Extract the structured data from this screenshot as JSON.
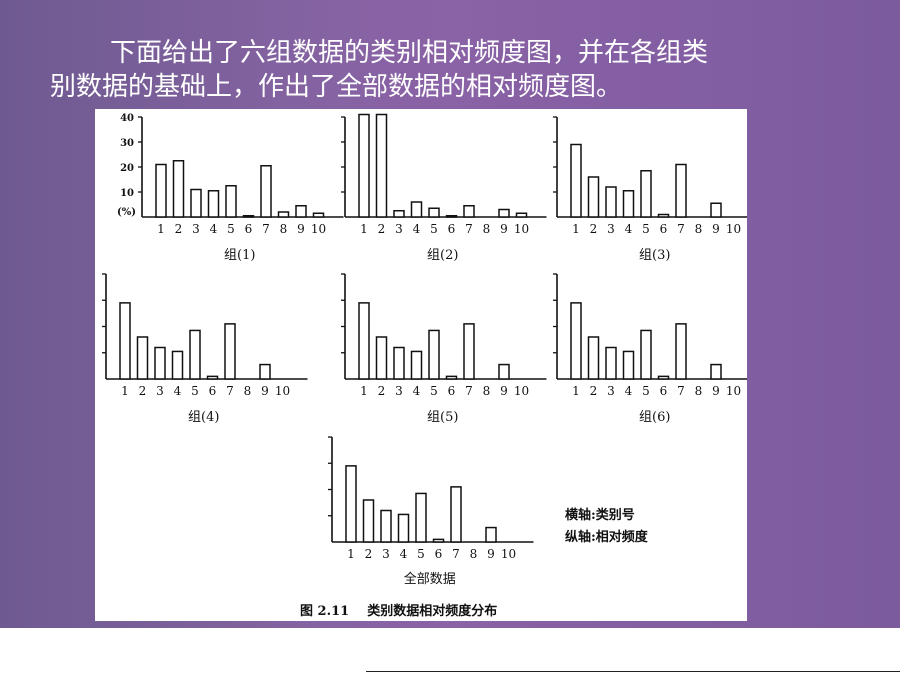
{
  "intro": {
    "line1": "下面给出了六组数据的类别相对频度图，并在各组类",
    "line2": "别数据的基础上，作出了全部数据的相对频度图。"
  },
  "figure": {
    "caption": "图 2.11    类别数据相对频度分布",
    "legend_x": "横轴:类别号",
    "legend_y": "纵轴:相对频度"
  },
  "chart_data": [
    {
      "type": "bar",
      "title": "组(1)",
      "ylabel": "(%)",
      "yticks": [
        "40",
        "30",
        "20",
        "10"
      ],
      "ylim": [
        0,
        40
      ],
      "categories": [
        "1",
        "2",
        "3",
        "4",
        "5",
        "6",
        "7",
        "8",
        "9",
        "10"
      ],
      "values": [
        21,
        22.5,
        11,
        10.5,
        12.5,
        0.5,
        20.5,
        2,
        4.5,
        1.5
      ]
    },
    {
      "type": "bar",
      "title": "组(2)",
      "ylim": [
        0,
        40
      ],
      "categories": [
        "1",
        "2",
        "3",
        "4",
        "5",
        "6",
        "7",
        "8",
        "9",
        "10"
      ],
      "values": [
        41,
        41,
        2.5,
        6,
        3.5,
        0.5,
        4.5,
        0,
        3,
        1.5
      ]
    },
    {
      "type": "bar",
      "title": "组(3)",
      "ylim": [
        0,
        40
      ],
      "categories": [
        "1",
        "2",
        "3",
        "4",
        "5",
        "6",
        "7",
        "8",
        "9",
        "10"
      ],
      "values": [
        29,
        16,
        12,
        10.5,
        18.5,
        1,
        21,
        0,
        5.5,
        0
      ]
    },
    {
      "type": "bar",
      "title": "组(4)",
      "ylim": [
        0,
        40
      ],
      "categories": [
        "1",
        "2",
        "3",
        "4",
        "5",
        "6",
        "7",
        "8",
        "9",
        "10"
      ],
      "values": [
        29,
        16,
        12,
        10.5,
        18.5,
        1,
        21,
        0,
        5.5,
        0
      ]
    },
    {
      "type": "bar",
      "title": "组(5)",
      "ylim": [
        0,
        40
      ],
      "categories": [
        "1",
        "2",
        "3",
        "4",
        "5",
        "6",
        "7",
        "8",
        "9",
        "10"
      ],
      "values": [
        29,
        16,
        12,
        10.5,
        18.5,
        1,
        21,
        0,
        5.5,
        0
      ]
    },
    {
      "type": "bar",
      "title": "组(6)",
      "ylim": [
        0,
        40
      ],
      "categories": [
        "1",
        "2",
        "3",
        "4",
        "5",
        "6",
        "7",
        "8",
        "9",
        "10"
      ],
      "values": [
        29,
        16,
        12,
        10.5,
        18.5,
        1,
        21,
        0,
        5.5,
        0
      ]
    },
    {
      "type": "bar",
      "title": "全部数据",
      "ylim": [
        0,
        40
      ],
      "categories": [
        "1",
        "2",
        "3",
        "4",
        "5",
        "6",
        "7",
        "8",
        "9",
        "10"
      ],
      "values": [
        29,
        16,
        12,
        10.5,
        18.5,
        1,
        21,
        0,
        5.5,
        0
      ]
    }
  ]
}
